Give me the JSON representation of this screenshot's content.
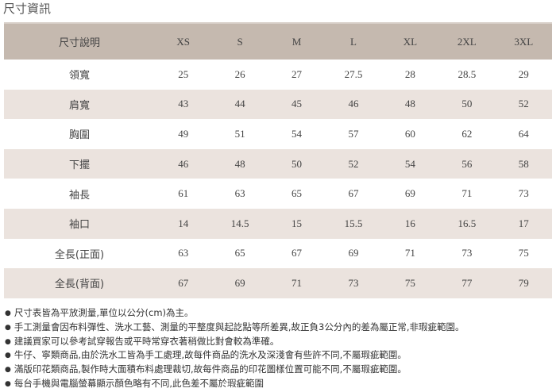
{
  "title": "尺寸資訊",
  "table": {
    "headers": [
      "尺寸說明",
      "XS",
      "S",
      "M",
      "L",
      "XL",
      "2XL",
      "3XL"
    ],
    "rows": [
      [
        "領寬",
        "25",
        "26",
        "27",
        "27.5",
        "28",
        "28.5",
        "29"
      ],
      [
        "肩寬",
        "43",
        "44",
        "45",
        "46",
        "48",
        "50",
        "52"
      ],
      [
        "胸圍",
        "49",
        "51",
        "54",
        "57",
        "60",
        "62",
        "64"
      ],
      [
        "下擺",
        "46",
        "48",
        "50",
        "52",
        "54",
        "56",
        "58"
      ],
      [
        "袖長",
        "61",
        "63",
        "65",
        "67",
        "69",
        "71",
        "73"
      ],
      [
        "袖口",
        "14",
        "14.5",
        "15",
        "15.5",
        "16",
        "16.5",
        "17"
      ],
      [
        "全長(正面)",
        "63",
        "65",
        "67",
        "69",
        "71",
        "73",
        "75"
      ],
      [
        "全長(背面)",
        "67",
        "69",
        "71",
        "73",
        "75",
        "77",
        "79"
      ]
    ]
  },
  "notes": [
    "尺寸表皆為平放測量,單位以公分(cm)為主。",
    "手工測量會因布料彈性、洗水工藝、測量的平整度與起訖點等所差異,故正負3公分內的差為屬正常,非瑕疵範圍。",
    "建議買家可以參考試穿報告或平時常穿衣著稍做比對會較為準確。",
    "牛仔、寧類商品,由於洗水工皆為手工處理,故每件商品的洗水及深淺會有些許不同,不屬瑕疵範圍。",
    "滿版印花類商品,製作時大面積布料處理裁切,故每件商品的印花圖樣位置可能不同,不屬瑕疵範圍。",
    "每台手機與電腦螢幕顯示顏色略有不同,此色差不屬於瑕疵範圍"
  ],
  "colors": {
    "header_bg": "#c5b9af",
    "alt_row_bg": "#ebe3de"
  }
}
